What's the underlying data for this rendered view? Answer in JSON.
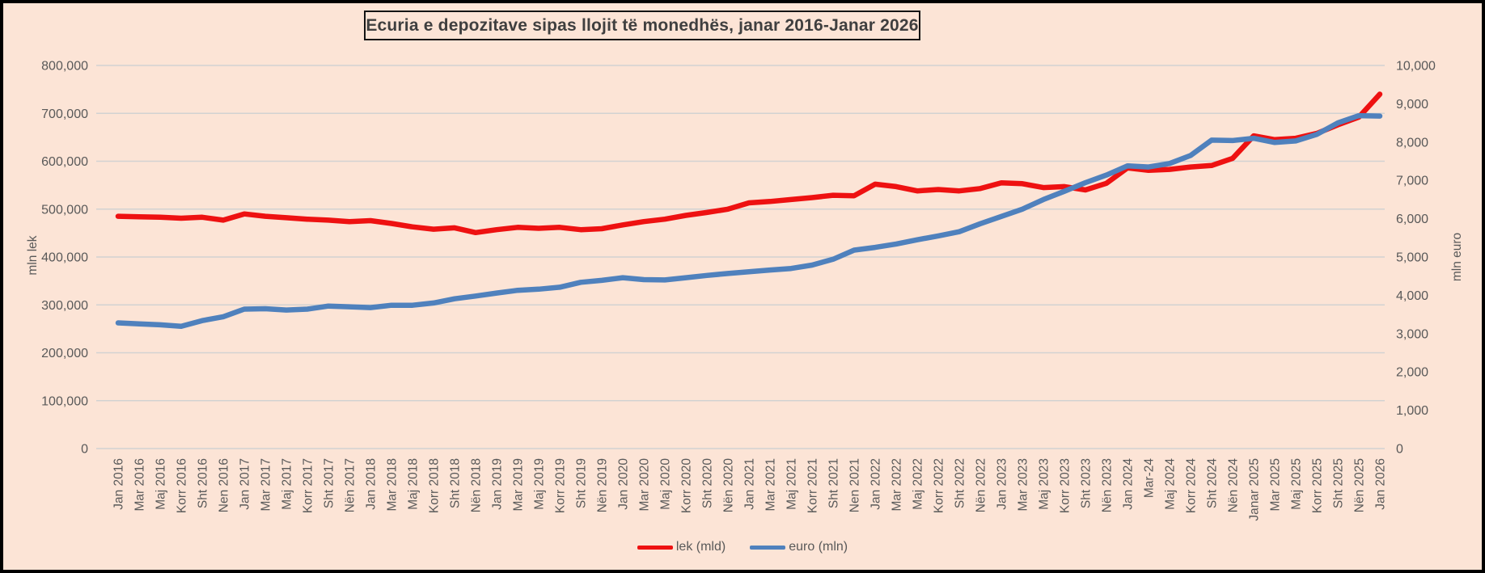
{
  "chart_data": {
    "type": "line",
    "title": "Ecuria e depozitave sipas llojit të monedhës, janar 2016-Janar 2026",
    "categories": [
      "Jan 2016",
      "Mar 2016",
      "Maj 2016",
      "Korr 2016",
      "Sht 2016",
      "Nen 2016",
      "Jan 2017",
      "Mar 2017",
      "Maj 2017",
      "Korr 2017",
      "Sht 2017",
      "Nën 2017",
      "Jan 2018",
      "Mar 2018",
      "Maj 2018",
      "Korr 2018",
      "Sht 2018",
      "Nën 2018",
      "Jan 2019",
      "Mar 2019",
      "Maj 2019",
      "Korr 2019",
      "Sht 2019",
      "Nën 2019",
      "Jan 2020",
      "Mar 2020",
      "Maj 2020",
      "Korr 2020",
      "Sht 2020",
      "Nën 2020",
      "Jan 2021",
      "Mar 2021",
      "Maj 2021",
      "Korr 2021",
      "Sht 2021",
      "Nen 2021",
      "Jan 2022",
      "Mar 2022",
      "Maj 2022",
      "Korr 2022",
      "Sht 2022",
      "Nën 2022",
      "Jan 2023",
      "Mar 2023",
      "Maj 2023",
      "Korr 2023",
      "Sht 2023",
      "Nën 2023",
      "Jan 2024",
      "Mar-24",
      "Maj 2024",
      "Korr 2024",
      "Sht 2024",
      "Nën 2024",
      "Janar 2025",
      "Mar 2025",
      "Maj 2025",
      "Korr 2025",
      "Sht 2025",
      "Nën 2025",
      "Jan 2026"
    ],
    "series": [
      {
        "name": "lek (mld)",
        "slug": "lek-mld",
        "axis": "left",
        "color": "#ee1111",
        "values": [
          485000,
          484000,
          483000,
          481000,
          483000,
          477000,
          490000,
          485000,
          482000,
          479000,
          477000,
          474000,
          476000,
          470000,
          463000,
          458000,
          461000,
          451000,
          457000,
          462000,
          460000,
          462000,
          457000,
          459000,
          467000,
          474000,
          479000,
          487000,
          493000,
          500000,
          513000,
          516000,
          520000,
          524000,
          529000,
          528000,
          552000,
          547000,
          538000,
          541000,
          538000,
          543000,
          555000,
          553000,
          545000,
          547000,
          540000,
          554000,
          586000,
          581000,
          583000,
          588000,
          591000,
          606000,
          653000,
          645000,
          648000,
          658000,
          676000,
          692000,
          740000
        ]
      },
      {
        "name": "euro (mln)",
        "slug": "euro-mln",
        "axis": "right",
        "color": "#4f81bd",
        "values": [
          3280,
          3255,
          3230,
          3190,
          3340,
          3440,
          3640,
          3650,
          3615,
          3640,
          3720,
          3700,
          3680,
          3740,
          3740,
          3800,
          3910,
          3980,
          4060,
          4130,
          4160,
          4210,
          4340,
          4390,
          4460,
          4410,
          4400,
          4460,
          4520,
          4570,
          4615,
          4660,
          4700,
          4790,
          4940,
          5180,
          5250,
          5340,
          5450,
          5550,
          5660,
          5870,
          6060,
          6250,
          6500,
          6715,
          6940,
          7140,
          7380,
          7350,
          7440,
          7650,
          8050,
          8040,
          8100,
          7990,
          8030,
          8200,
          8500,
          8690,
          8680
        ]
      }
    ],
    "left_axis": {
      "label": "mln lek",
      "min": 0,
      "max": 800000,
      "step": 100000
    },
    "right_axis": {
      "label": "mln euro",
      "min": 0,
      "max": 10000,
      "step": 1000
    },
    "grid": true,
    "legend_position": "bottom",
    "colors": {
      "background": "#fce4d6",
      "gridline": "#d2d2d2",
      "tick_text": "#595959",
      "title_text": "#3f3f3f",
      "frame_border": "#000000"
    }
  }
}
